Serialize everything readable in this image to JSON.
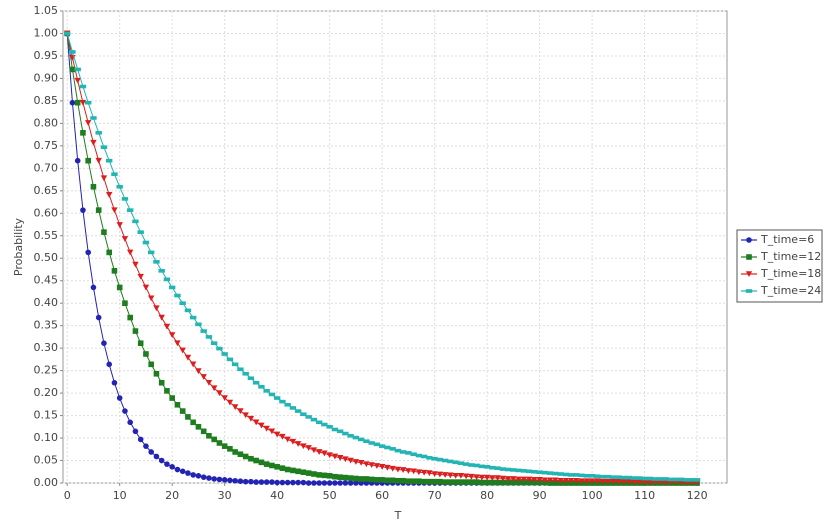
{
  "chart_data": {
    "type": "line",
    "x_label": "T",
    "y_label": "Probability",
    "x": [
      0,
      1,
      2,
      3,
      4,
      5,
      6,
      7,
      8,
      9,
      10,
      11,
      12,
      13,
      14,
      15,
      16,
      17,
      18,
      19,
      20,
      21,
      22,
      23,
      24,
      25,
      26,
      27,
      28,
      29,
      30,
      31,
      32,
      33,
      34,
      35,
      36,
      37,
      38,
      39,
      40,
      41,
      42,
      43,
      44,
      45,
      46,
      47,
      48,
      49,
      50,
      51,
      52,
      53,
      54,
      55,
      56,
      57,
      58,
      59,
      60,
      61,
      62,
      63,
      64,
      65,
      66,
      67,
      68,
      69,
      70,
      71,
      72,
      73,
      74,
      75,
      76,
      77,
      78,
      79,
      80,
      81,
      82,
      83,
      84,
      85,
      86,
      87,
      88,
      89,
      90,
      91,
      92,
      93,
      94,
      95,
      96,
      97,
      98,
      99,
      100,
      101,
      102,
      103,
      104,
      105,
      106,
      107,
      108,
      109,
      110,
      111,
      112,
      113,
      114,
      115,
      116,
      117,
      118,
      119,
      120
    ],
    "series": [
      {
        "name": "T_time=6",
        "color": "#2323b4",
        "marker": "circle",
        "values": [
          1.0,
          0.846,
          0.717,
          0.607,
          0.513,
          0.435,
          0.368,
          0.311,
          0.264,
          0.223,
          0.189,
          0.16,
          0.135,
          0.115,
          0.097,
          0.082,
          0.069,
          0.059,
          0.05,
          0.042,
          0.036,
          0.03,
          0.026,
          0.022,
          0.018,
          0.016,
          0.013,
          0.011,
          0.009,
          0.008,
          0.007,
          0.006,
          0.005,
          0.004,
          0.003,
          0.003,
          0.002,
          0.002,
          0.002,
          0.002,
          0.001,
          0.001,
          0.001,
          0.001,
          0.001,
          0.001,
          0,
          0,
          0,
          0,
          0,
          0,
          0,
          0,
          0,
          0,
          0,
          0,
          0,
          0,
          0,
          0,
          0,
          0,
          0,
          0,
          0,
          0,
          0,
          0,
          0,
          0,
          0,
          0,
          0,
          0,
          0,
          0,
          0,
          0,
          0,
          0,
          0,
          0,
          0,
          0,
          0,
          0,
          0,
          0,
          0,
          0,
          0,
          0,
          0,
          0,
          0,
          0,
          0,
          0,
          0,
          0,
          0,
          0,
          0,
          0,
          0,
          0,
          0,
          0,
          0,
          0,
          0,
          0,
          0,
          0,
          0,
          0,
          0,
          0,
          0
        ]
      },
      {
        "name": "T_time=12",
        "color": "#1e7d1e",
        "marker": "square",
        "values": [
          1.0,
          0.92,
          0.846,
          0.779,
          0.717,
          0.659,
          0.607,
          0.558,
          0.513,
          0.472,
          0.435,
          0.4,
          0.368,
          0.338,
          0.311,
          0.287,
          0.264,
          0.243,
          0.223,
          0.205,
          0.189,
          0.174,
          0.16,
          0.147,
          0.135,
          0.125,
          0.115,
          0.105,
          0.097,
          0.089,
          0.082,
          0.076,
          0.069,
          0.064,
          0.059,
          0.054,
          0.05,
          0.046,
          0.042,
          0.039,
          0.036,
          0.033,
          0.03,
          0.028,
          0.026,
          0.024,
          0.022,
          0.02,
          0.018,
          0.017,
          0.016,
          0.014,
          0.013,
          0.012,
          0.011,
          0.01,
          0.009,
          0.009,
          0.008,
          0.007,
          0.007,
          0.006,
          0.006,
          0.005,
          0.005,
          0.004,
          0.004,
          0.004,
          0.003,
          0.003,
          0.003,
          0.003,
          0.002,
          0.002,
          0.002,
          0.002,
          0.002,
          0.002,
          0.002,
          0.001,
          0.001,
          0.001,
          0.001,
          0.001,
          0.001,
          0.001,
          0.001,
          0.001,
          0.001,
          0.001,
          0.001,
          0.001,
          0,
          0,
          0,
          0,
          0,
          0,
          0,
          0,
          0,
          0,
          0,
          0,
          0,
          0,
          0,
          0,
          0,
          0,
          0,
          0,
          0,
          0,
          0,
          0,
          0,
          0,
          0,
          0,
          0
        ]
      },
      {
        "name": "T_time=18",
        "color": "#dc1e1e",
        "marker": "triangle-down",
        "values": [
          1.0,
          0.946,
          0.895,
          0.846,
          0.801,
          0.757,
          0.717,
          0.678,
          0.641,
          0.607,
          0.574,
          0.543,
          0.513,
          0.486,
          0.459,
          0.435,
          0.411,
          0.389,
          0.368,
          0.348,
          0.329,
          0.311,
          0.295,
          0.279,
          0.264,
          0.249,
          0.236,
          0.223,
          0.211,
          0.2,
          0.189,
          0.179,
          0.169,
          0.16,
          0.151,
          0.143,
          0.135,
          0.128,
          0.121,
          0.115,
          0.108,
          0.103,
          0.097,
          0.092,
          0.087,
          0.082,
          0.078,
          0.073,
          0.069,
          0.066,
          0.062,
          0.059,
          0.056,
          0.053,
          0.05,
          0.047,
          0.045,
          0.042,
          0.04,
          0.038,
          0.036,
          0.034,
          0.032,
          0.03,
          0.029,
          0.027,
          0.026,
          0.024,
          0.023,
          0.022,
          0.02,
          0.019,
          0.018,
          0.017,
          0.016,
          0.016,
          0.015,
          0.014,
          0.013,
          0.012,
          0.012,
          0.011,
          0.011,
          0.01,
          0.009,
          0.009,
          0.008,
          0.008,
          0.008,
          0.007,
          0.007,
          0.006,
          0.006,
          0.006,
          0.005,
          0.005,
          0.005,
          0.005,
          0.004,
          0.004,
          0.004,
          0.004,
          0.003,
          0.003,
          0.003,
          0.003,
          0.003,
          0.003,
          0.002,
          0.002,
          0.002,
          0.002,
          0.002,
          0.002,
          0.002,
          0.002,
          0.002,
          0.002,
          0.001,
          0.001,
          0.001
        ]
      },
      {
        "name": "T_time=24",
        "color": "#23b4b4",
        "marker": "rect",
        "values": [
          1.0,
          0.959,
          0.92,
          0.882,
          0.846,
          0.812,
          0.779,
          0.747,
          0.717,
          0.687,
          0.659,
          0.632,
          0.607,
          0.582,
          0.558,
          0.535,
          0.513,
          0.492,
          0.472,
          0.453,
          0.435,
          0.417,
          0.4,
          0.384,
          0.368,
          0.353,
          0.338,
          0.325,
          0.311,
          0.299,
          0.287,
          0.275,
          0.264,
          0.253,
          0.243,
          0.233,
          0.223,
          0.214,
          0.205,
          0.197,
          0.189,
          0.181,
          0.174,
          0.167,
          0.16,
          0.153,
          0.147,
          0.141,
          0.135,
          0.13,
          0.125,
          0.119,
          0.115,
          0.11,
          0.105,
          0.101,
          0.097,
          0.093,
          0.089,
          0.086,
          0.082,
          0.079,
          0.076,
          0.072,
          0.069,
          0.067,
          0.064,
          0.061,
          0.059,
          0.056,
          0.054,
          0.052,
          0.05,
          0.048,
          0.046,
          0.044,
          0.042,
          0.04,
          0.039,
          0.037,
          0.036,
          0.034,
          0.033,
          0.031,
          0.03,
          0.029,
          0.028,
          0.027,
          0.026,
          0.025,
          0.024,
          0.023,
          0.022,
          0.021,
          0.02,
          0.019,
          0.018,
          0.018,
          0.017,
          0.016,
          0.016,
          0.015,
          0.014,
          0.014,
          0.013,
          0.013,
          0.012,
          0.012,
          0.011,
          0.011,
          0.01,
          0.01,
          0.009,
          0.009,
          0.009,
          0.008,
          0.008,
          0.008,
          0.007,
          0.007,
          0.007
        ]
      }
    ],
    "xlim": [
      -0.8,
      125.7
    ],
    "xticks": [
      0,
      10,
      20,
      30,
      40,
      50,
      60,
      70,
      80,
      90,
      100,
      110,
      120
    ],
    "ylim": [
      0,
      1.05
    ],
    "yticks": [
      {
        "value": 0,
        "label": "0.00"
      },
      {
        "value": 0.05,
        "label": "0.05"
      },
      {
        "value": 0.1,
        "label": "0.10"
      },
      {
        "value": 0.15,
        "label": "0.15"
      },
      {
        "value": 0.2,
        "label": "0.20"
      },
      {
        "value": 0.25,
        "label": "0.25"
      },
      {
        "value": 0.3,
        "label": "0.30"
      },
      {
        "value": 0.35,
        "label": "0.35"
      },
      {
        "value": 0.4,
        "label": "0.40"
      },
      {
        "value": 0.45,
        "label": "0.45"
      },
      {
        "value": 0.5,
        "label": "0.50"
      },
      {
        "value": 0.55,
        "label": "0.55"
      },
      {
        "value": 0.6,
        "label": "0.60"
      },
      {
        "value": 0.65,
        "label": "0.65"
      },
      {
        "value": 0.7,
        "label": "0.70"
      },
      {
        "value": 0.75,
        "label": "0.75"
      },
      {
        "value": 0.8,
        "label": "0.80"
      },
      {
        "value": 0.85,
        "label": "0.85"
      },
      {
        "value": 0.9,
        "label": "0.90"
      },
      {
        "value": 0.95,
        "label": "0.95"
      },
      {
        "value": 1.0,
        "label": "1.00"
      },
      {
        "value": 1.05,
        "label": "1.05"
      }
    ],
    "grid": true,
    "legend": "right"
  }
}
